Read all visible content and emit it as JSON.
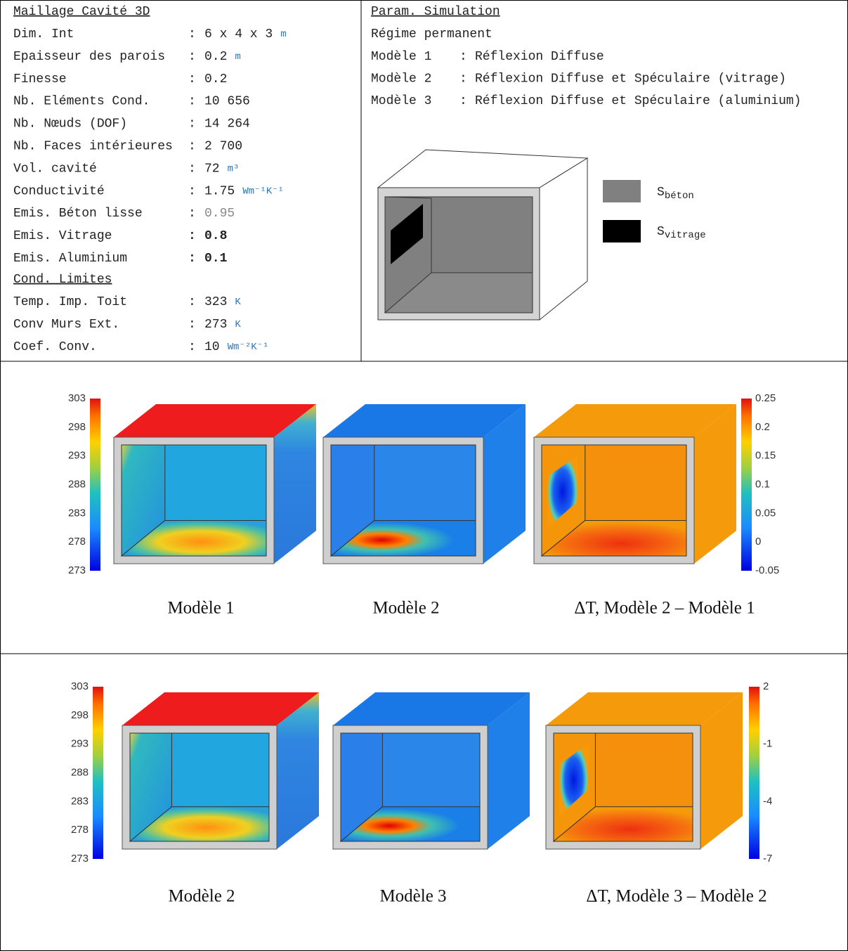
{
  "separator": ":",
  "maillage": {
    "title": "Maillage Cavité 3D",
    "rows": [
      {
        "label": "Dim. Int",
        "value": "6 x 4 x 3",
        "unit": "m"
      },
      {
        "label": "Epaisseur des parois",
        "value": "0.2",
        "unit": "m"
      },
      {
        "label": "Finesse",
        "value": "0.2"
      },
      {
        "label": "Nb. Eléments Cond.",
        "value": "10 656"
      },
      {
        "label": "Nb. Nœuds (DOF)",
        "value": "14 264"
      },
      {
        "label": "Nb. Faces intérieures",
        "value": "2 700"
      },
      {
        "label": "Vol. cavité",
        "value": "72",
        "unit": "m³"
      },
      {
        "label": "Conductivité",
        "value": "1.75",
        "unit": "Wm⁻¹K⁻¹"
      },
      {
        "label": "Emis. Béton lisse",
        "value": "0.95",
        "style": "muted"
      },
      {
        "label": "Emis. Vitrage",
        "value": "0.8",
        "style": "bold"
      },
      {
        "label": "Emis. Aluminium",
        "value": "0.1",
        "style": "bold"
      }
    ]
  },
  "conditions": {
    "title": "Cond. Limites",
    "rows": [
      {
        "label": "Temp. Imp. Toit",
        "value": "323",
        "unit": "K"
      },
      {
        "label": "Conv Murs Ext.",
        "value": "273",
        "unit": "K"
      },
      {
        "label": "Coef. Conv.",
        "value": "10",
        "unit": "Wm⁻²K⁻¹"
      }
    ]
  },
  "simulation": {
    "title": "Param. Simulation",
    "regime": "Régime permanent",
    "models": [
      {
        "label": "Modèle 1",
        "description": "Réflexion Diffuse"
      },
      {
        "label": "Modèle 2",
        "description": "Réflexion Diffuse et Spéculaire (vitrage)"
      },
      {
        "label": "Modèle 3",
        "description": "Réflexion Diffuse et Spéculaire (aluminium)"
      }
    ],
    "legend": [
      {
        "symbol": "S",
        "subscript": "béton"
      },
      {
        "symbol": "S",
        "subscript": "vitrage"
      }
    ]
  },
  "figures": [
    {
      "colorbar_left": [
        303,
        298,
        293,
        288,
        283,
        278,
        273
      ],
      "colorbar_right": [
        0.25,
        0.2,
        0.15,
        0.1,
        0.05,
        0,
        -0.05
      ],
      "captions": [
        "Modèle 1",
        "Modèle 2",
        "ΔT, Modèle 2 – Modèle 1"
      ]
    },
    {
      "colorbar_left": [
        303,
        298,
        293,
        288,
        283,
        278,
        273
      ],
      "colorbar_right": [
        2,
        -1,
        -4,
        -7
      ],
      "captions": [
        "Modèle 2",
        "Modèle 3",
        "ΔT, Modèle 3 – Modèle 2"
      ]
    }
  ]
}
